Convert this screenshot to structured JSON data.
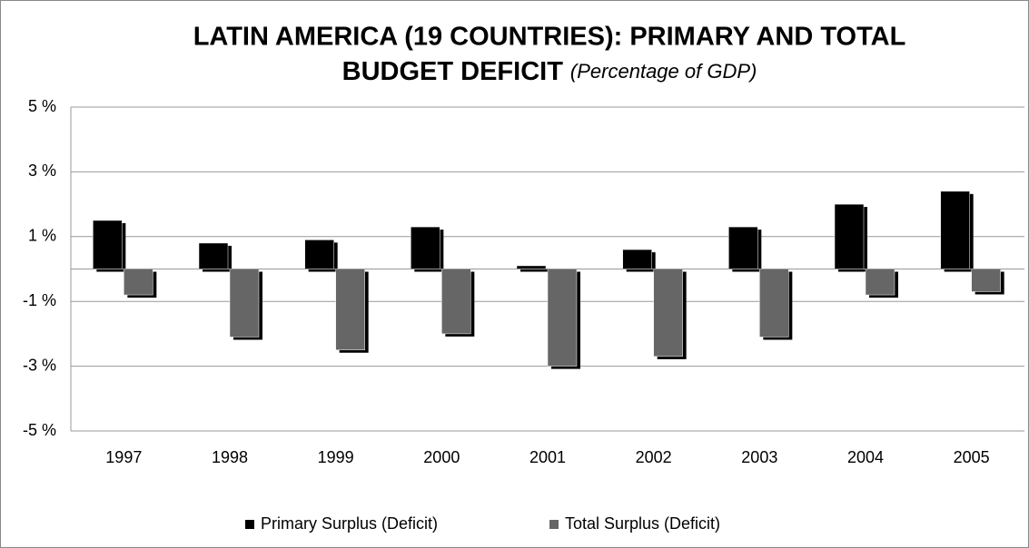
{
  "chart_data": {
    "type": "bar",
    "title": [
      "LATIN AMERICA (19 COUNTRIES): PRIMARY AND TOTAL",
      "BUDGET DEFICIT"
    ],
    "subtitle": "(Percentage of GDP)",
    "categories": [
      "1997",
      "1998",
      "1999",
      "2000",
      "2001",
      "2002",
      "2003",
      "2004",
      "2005"
    ],
    "series": [
      {
        "name": "Primary Surplus (Deficit)",
        "color": "#000000",
        "values": [
          1.5,
          0.8,
          0.9,
          1.3,
          0.1,
          0.6,
          1.3,
          2.0,
          2.4
        ]
      },
      {
        "name": "Total Surplus (Deficit)",
        "color": "#666666",
        "values": [
          -0.8,
          -2.1,
          -2.5,
          -2.0,
          -3.0,
          -2.7,
          -2.1,
          -0.8,
          -0.7
        ]
      }
    ],
    "ylim": [
      -5,
      5
    ],
    "yticks": [
      {
        "value": 5,
        "label": "5 %"
      },
      {
        "value": 3,
        "label": "3 %"
      },
      {
        "value": 1,
        "label": "1 %"
      },
      {
        "value": -1,
        "label": "-1 %"
      },
      {
        "value": -3,
        "label": "-3 %"
      },
      {
        "value": -5,
        "label": "-5 %"
      }
    ],
    "grid": true,
    "legend": "bottom"
  }
}
